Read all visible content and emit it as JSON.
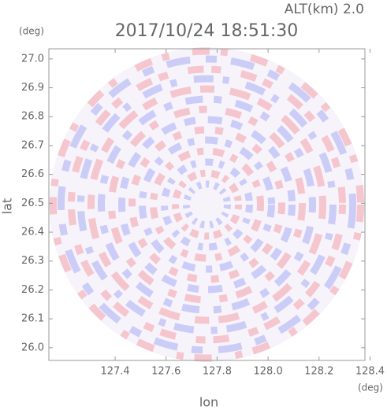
{
  "chart_data": {
    "type": "radar-ppi",
    "title": "2017/10/24 18:51:30",
    "subtitle": "ALT(km) 2.0",
    "x_label": "lon",
    "y_label": "lat",
    "x_unit": "(deg)",
    "y_unit": "(deg)",
    "xlim": [
      127.14,
      128.38
    ],
    "ylim": [
      25.956,
      27.035
    ],
    "xticks": [
      127.4,
      127.6,
      127.8,
      {
        "value": 128.0,
        "label": "128.0"
      },
      128.2,
      128.4
    ],
    "yticks": [
      {
        "value": 26.0,
        "label": "26.0"
      },
      26.1,
      26.2,
      26.3,
      26.4,
      26.5,
      26.6,
      26.7,
      26.8,
      26.9,
      {
        "value": 27.0,
        "label": "27.0"
      }
    ]
  }
}
